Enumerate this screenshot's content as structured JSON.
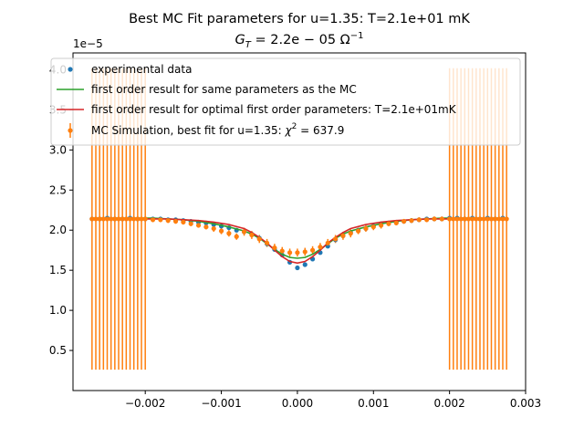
{
  "chart_data": {
    "type": "scatter",
    "title": "Best MC Fit parameters for u=1.35:  T=2.1e+01 mK",
    "subtitle": "G_T = 2.2e−05 Ω⁻¹",
    "subtitle_parts": {
      "g": "G",
      "t": "T",
      "eq": " = 2.2e − 05 Ω",
      "exp": "−1"
    },
    "xlabel": "",
    "ylabel": "",
    "y_offset_label": "1e−5",
    "xlim": [
      -0.00295,
      0.003
    ],
    "ylim": [
      0.0,
      4.21
    ],
    "x_ticks": [
      -0.002,
      -0.001,
      0.0,
      0.001,
      0.002,
      0.003
    ],
    "x_tick_labels": [
      "−0.002",
      "−0.001",
      "0.000",
      "0.001",
      "0.002",
      "0.003"
    ],
    "y_ticks": [
      0.5,
      1.0,
      1.5,
      2.0,
      2.5,
      3.0,
      3.5,
      4.0
    ],
    "y_tick_labels": [
      "0.5",
      "1.0",
      "1.5",
      "2.0",
      "2.5",
      "3.0",
      "3.5",
      "4.0"
    ],
    "grid": false,
    "legend_position": "top-left",
    "series": [
      {
        "name": "experimental data",
        "kind": "scatter",
        "color": "#1f77b4",
        "x": [
          -0.0027,
          -0.0026,
          -0.0025,
          -0.0024,
          -0.0023,
          -0.0022,
          -0.0021,
          -0.002,
          -0.0019,
          -0.0018,
          -0.0017,
          -0.0016,
          -0.0015,
          -0.0014,
          -0.0013,
          -0.0012,
          -0.0011,
          -0.001,
          -0.0009,
          -0.0008,
          -0.0007,
          -0.0006,
          -0.0005,
          -0.0004,
          -0.0003,
          -0.0002,
          -0.0001,
          0.0,
          0.0001,
          0.0002,
          0.0003,
          0.0004,
          0.0005,
          0.0006,
          0.0007,
          0.0008,
          0.0009,
          0.001,
          0.0011,
          0.0012,
          0.0013,
          0.0014,
          0.0015,
          0.0016,
          0.0017,
          0.0018,
          0.0019,
          0.002,
          0.0021,
          0.0022,
          0.0023,
          0.0024,
          0.0025,
          0.0026,
          0.0027
        ],
        "y": [
          2.14,
          2.14,
          2.15,
          2.14,
          2.14,
          2.15,
          2.14,
          2.14,
          2.14,
          2.14,
          2.13,
          2.13,
          2.12,
          2.11,
          2.1,
          2.09,
          2.07,
          2.05,
          2.03,
          2.0,
          1.98,
          1.95,
          1.9,
          1.83,
          1.76,
          1.69,
          1.6,
          1.53,
          1.57,
          1.64,
          1.72,
          1.8,
          1.88,
          1.93,
          1.97,
          2.0,
          2.02,
          2.05,
          2.08,
          2.09,
          2.1,
          2.11,
          2.12,
          2.13,
          2.14,
          2.14,
          2.14,
          2.15,
          2.15,
          2.14,
          2.15,
          2.14,
          2.15,
          2.14,
          2.15
        ]
      },
      {
        "name": "first order result for same parameters as the MC",
        "kind": "line",
        "color": "#2ca02c",
        "x": [
          -0.0027,
          -0.0025,
          -0.0023,
          -0.0021,
          -0.0019,
          -0.0017,
          -0.0015,
          -0.0013,
          -0.0011,
          -0.0009,
          -0.0007,
          -0.0006,
          -0.0005,
          -0.0004,
          -0.0003,
          -0.0002,
          -0.0001,
          0.0,
          0.0001,
          0.0002,
          0.0003,
          0.0004,
          0.0005,
          0.0006,
          0.0007,
          0.0009,
          0.0011,
          0.0013,
          0.0015,
          0.0017,
          0.0019,
          0.0021,
          0.0023,
          0.0025,
          0.0027
        ],
        "y": [
          2.15,
          2.15,
          2.15,
          2.15,
          2.15,
          2.14,
          2.13,
          2.11,
          2.08,
          2.04,
          1.99,
          1.95,
          1.9,
          1.83,
          1.76,
          1.7,
          1.66,
          1.65,
          1.66,
          1.7,
          1.76,
          1.83,
          1.9,
          1.95,
          1.99,
          2.04,
          2.08,
          2.11,
          2.13,
          2.14,
          2.15,
          2.15,
          2.15,
          2.15,
          2.15
        ]
      },
      {
        "name": "first order result for optimal first order parameters: T=2.1e+01mK",
        "kind": "line",
        "color": "#d62728",
        "x": [
          -0.0027,
          -0.0025,
          -0.0023,
          -0.0021,
          -0.0019,
          -0.0017,
          -0.0015,
          -0.0013,
          -0.0011,
          -0.0009,
          -0.0007,
          -0.0006,
          -0.0005,
          -0.0004,
          -0.0003,
          -0.0002,
          -0.0001,
          0.0,
          0.0001,
          0.0002,
          0.0003,
          0.0004,
          0.0005,
          0.0006,
          0.0007,
          0.0009,
          0.0011,
          0.0013,
          0.0015,
          0.0017,
          0.0019,
          0.0021,
          0.0023,
          0.0025,
          0.0027
        ],
        "y": [
          2.14,
          2.14,
          2.14,
          2.14,
          2.14,
          2.14,
          2.13,
          2.12,
          2.1,
          2.07,
          2.02,
          1.97,
          1.91,
          1.84,
          1.75,
          1.67,
          1.61,
          1.59,
          1.61,
          1.67,
          1.75,
          1.84,
          1.91,
          1.97,
          2.02,
          2.07,
          2.1,
          2.12,
          2.13,
          2.14,
          2.14,
          2.14,
          2.14,
          2.14,
          2.14
        ]
      },
      {
        "name": "MC Simulation, best fit for u=1.35:  χ² = 637.9",
        "legend_prefix": "MC Simulation, best fit for u=1.35:  ",
        "legend_chi": "χ",
        "legend_sup": "2",
        "legend_value": " = 637.9",
        "kind": "errorbar",
        "color": "#ff7f0e",
        "x": [
          -0.0027,
          -0.00265,
          -0.0026,
          -0.00255,
          -0.0025,
          -0.00245,
          -0.0024,
          -0.00235,
          -0.0023,
          -0.00225,
          -0.0022,
          -0.00215,
          -0.0021,
          -0.00205,
          -0.002,
          -0.0019,
          -0.0018,
          -0.0017,
          -0.0016,
          -0.0015,
          -0.0014,
          -0.0013,
          -0.0012,
          -0.0011,
          -0.001,
          -0.0009,
          -0.0008,
          -0.0007,
          -0.0006,
          -0.0005,
          -0.0004,
          -0.0003,
          -0.0002,
          -0.0001,
          0.0,
          0.0001,
          0.0002,
          0.0003,
          0.0004,
          0.0005,
          0.0006,
          0.0007,
          0.0008,
          0.0009,
          0.001,
          0.0011,
          0.0012,
          0.0013,
          0.0014,
          0.0015,
          0.0016,
          0.0017,
          0.0018,
          0.0019,
          0.002,
          0.00205,
          0.0021,
          0.00215,
          0.0022,
          0.00225,
          0.0023,
          0.00235,
          0.0024,
          0.00245,
          0.0025,
          0.00255,
          0.0026,
          0.00265,
          0.0027,
          0.00275
        ],
        "y": [
          2.14,
          2.14,
          2.14,
          2.14,
          2.14,
          2.14,
          2.14,
          2.14,
          2.14,
          2.14,
          2.14,
          2.14,
          2.14,
          2.14,
          2.14,
          2.13,
          2.13,
          2.12,
          2.11,
          2.1,
          2.08,
          2.06,
          2.04,
          2.02,
          1.99,
          1.96,
          1.92,
          1.98,
          1.94,
          1.89,
          1.84,
          1.78,
          1.74,
          1.72,
          1.72,
          1.73,
          1.75,
          1.79,
          1.84,
          1.89,
          1.93,
          1.96,
          1.99,
          2.02,
          2.04,
          2.06,
          2.08,
          2.09,
          2.11,
          2.12,
          2.13,
          2.13,
          2.14,
          2.14,
          2.14,
          2.14,
          2.14,
          2.14,
          2.14,
          2.14,
          2.14,
          2.14,
          2.14,
          2.14,
          2.14,
          2.14,
          2.14,
          2.14,
          2.14,
          2.14
        ],
        "err": [
          1.88,
          1.88,
          1.88,
          1.88,
          1.88,
          1.88,
          1.88,
          1.88,
          1.88,
          1.88,
          1.88,
          1.88,
          1.88,
          1.88,
          1.88,
          0.03,
          0.03,
          0.03,
          0.03,
          0.03,
          0.03,
          0.03,
          0.03,
          0.04,
          0.04,
          0.04,
          0.04,
          0.05,
          0.05,
          0.05,
          0.05,
          0.05,
          0.05,
          0.05,
          0.05,
          0.05,
          0.05,
          0.05,
          0.05,
          0.05,
          0.05,
          0.05,
          0.04,
          0.04,
          0.04,
          0.04,
          0.03,
          0.03,
          0.03,
          0.03,
          0.03,
          0.03,
          0.03,
          0.03,
          1.88,
          1.88,
          1.88,
          1.88,
          1.88,
          1.88,
          1.88,
          1.88,
          1.88,
          1.88,
          1.88,
          1.88,
          1.88,
          1.88,
          1.88,
          1.88
        ]
      }
    ]
  }
}
